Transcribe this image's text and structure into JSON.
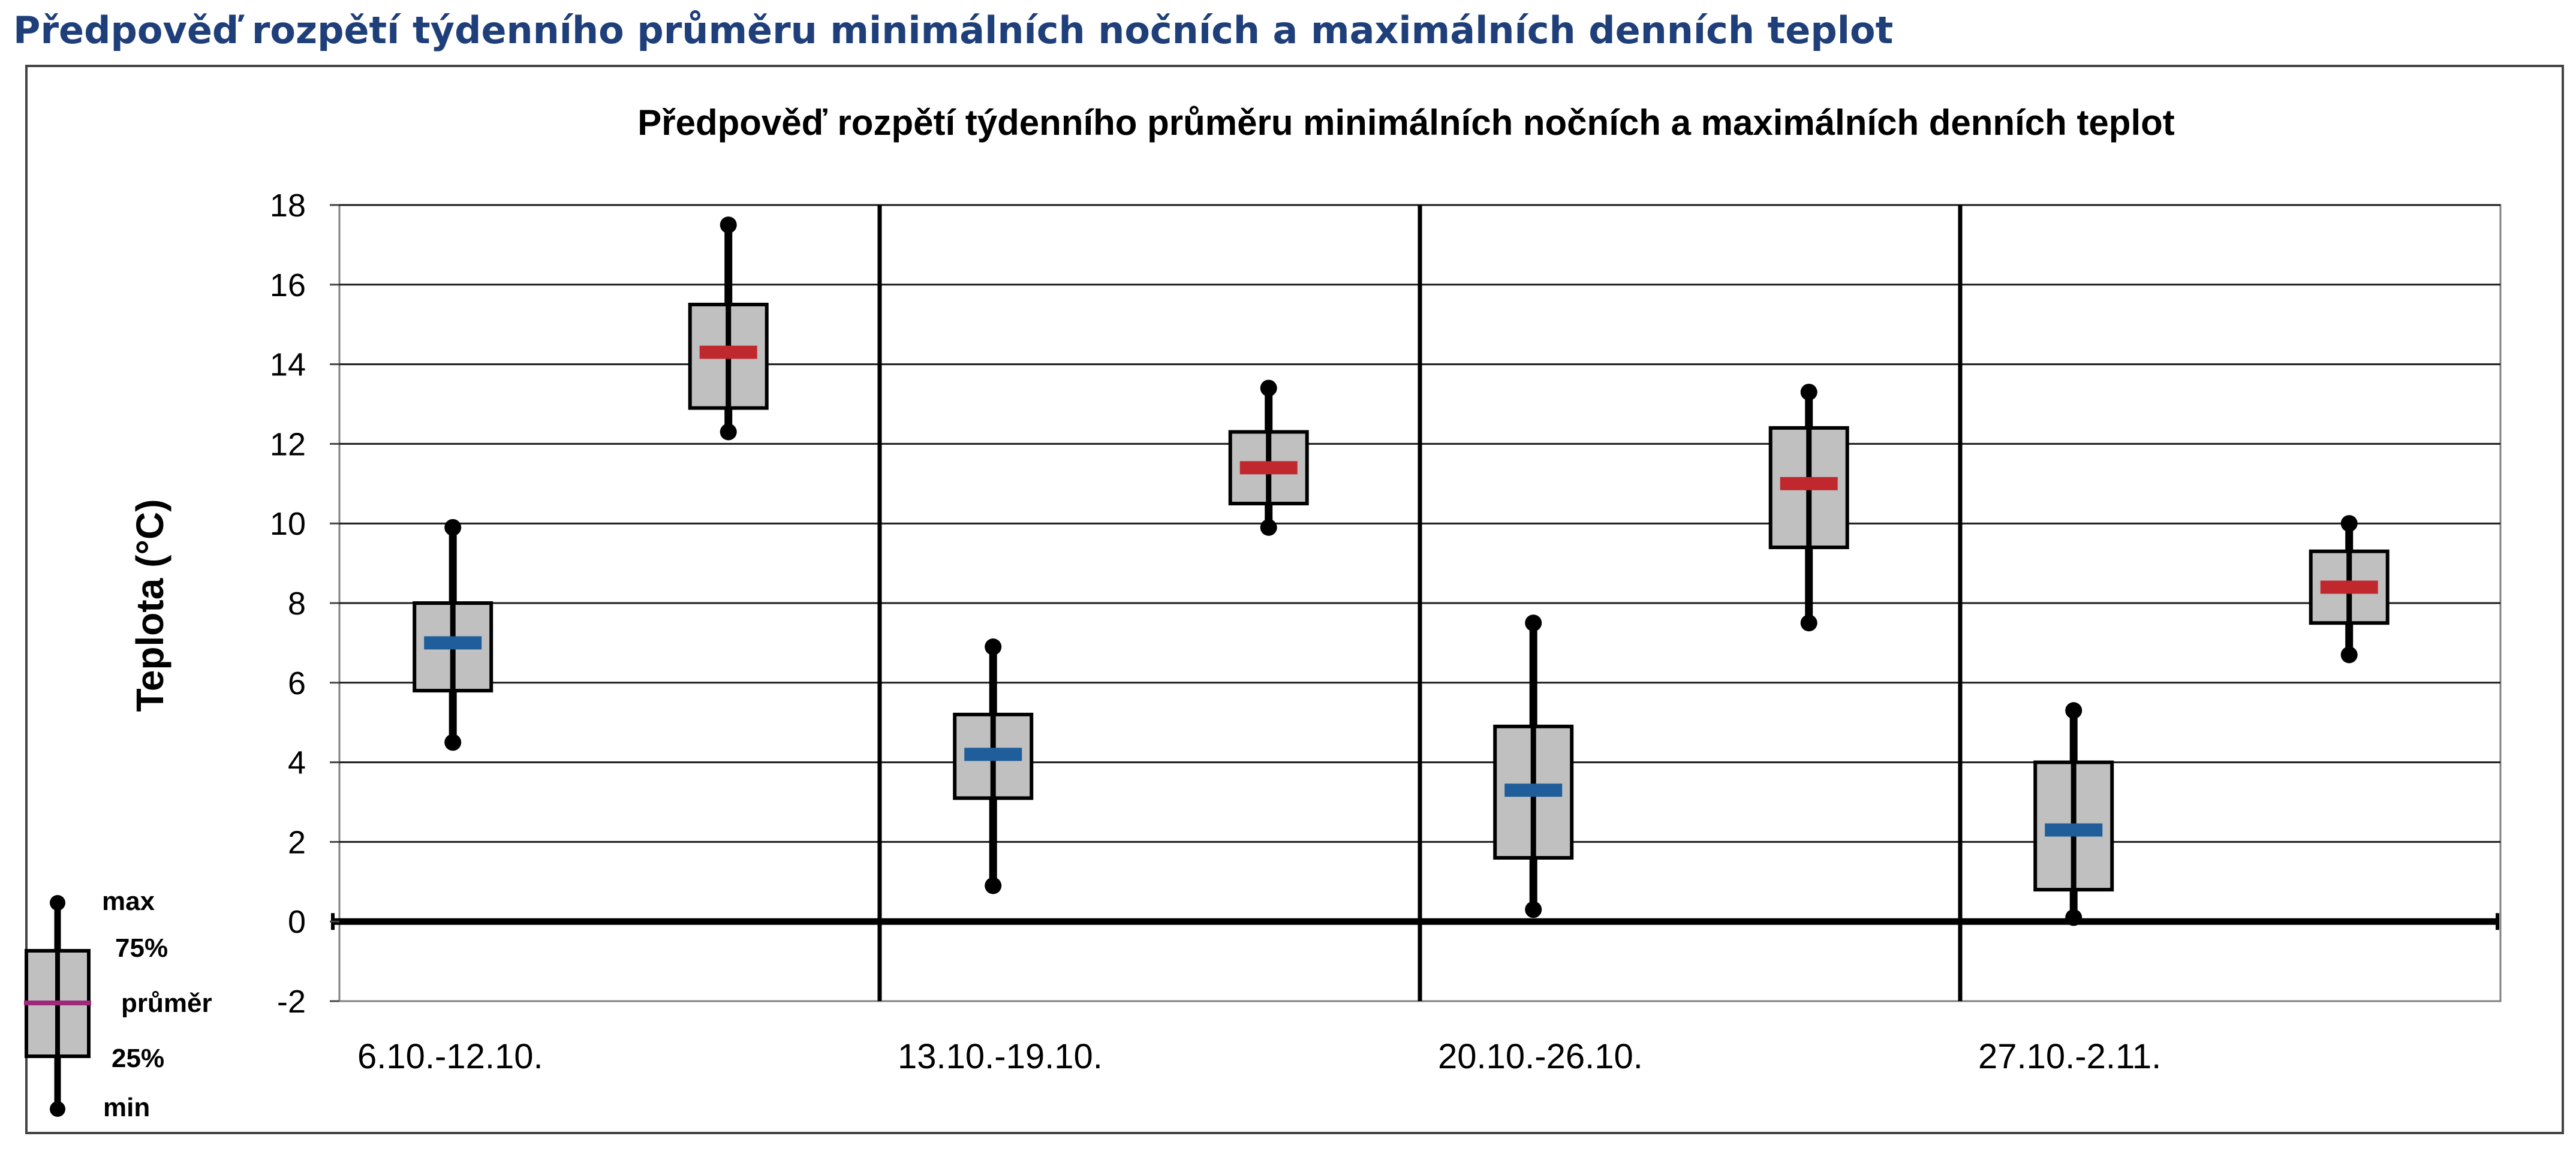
{
  "page": {
    "title": "Předpověď rozpětí týdenního průměru minimálních nočních a maximálních denních teplot"
  },
  "chart_data": {
    "type": "box",
    "title": "Předpověď rozpětí týdenního průměru minimálních nočních a maximálních denních teplot",
    "xlabel": "",
    "ylabel": "Teplota (°C)",
    "ylim": [
      -2,
      18
    ],
    "yticks": [
      -2,
      0,
      2,
      4,
      6,
      8,
      10,
      12,
      14,
      16,
      18
    ],
    "grid": true,
    "categories": [
      "6.10.-12.10.",
      "13.10.-19.10.",
      "20.10.-26.10.",
      "27.10.-2.11."
    ],
    "series": [
      {
        "kind": "min",
        "color": "#1f5e9a",
        "boxes": [
          {
            "min": 4.5,
            "q1": 5.8,
            "mean": 7.0,
            "q3": 8.0,
            "max": 9.9
          },
          {
            "min": 0.9,
            "q1": 3.1,
            "mean": 4.2,
            "q3": 5.2,
            "max": 6.9
          },
          {
            "min": 0.3,
            "q1": 1.6,
            "mean": 3.3,
            "q3": 4.9,
            "max": 7.5
          },
          {
            "min": 0.1,
            "q1": 0.8,
            "mean": 2.3,
            "q3": 4.0,
            "max": 5.3
          }
        ]
      },
      {
        "kind": "max",
        "color": "#c0282d",
        "boxes": [
          {
            "min": 12.3,
            "q1": 12.9,
            "mean": 14.3,
            "q3": 15.5,
            "max": 17.5
          },
          {
            "min": 9.9,
            "q1": 10.5,
            "mean": 11.4,
            "q3": 12.3,
            "max": 13.4
          },
          {
            "min": 7.5,
            "q1": 9.4,
            "mean": 11.0,
            "q3": 12.4,
            "max": 13.3
          },
          {
            "min": 6.7,
            "q1": 7.5,
            "mean": 8.4,
            "q3": 9.3,
            "max": 10.0
          }
        ]
      }
    ],
    "legend": {
      "placement": "bottom-left",
      "max": "max",
      "q3": "75%",
      "mean": "průměr",
      "q1": "25%",
      "min": "min",
      "mean_color": "#a0287a"
    }
  }
}
